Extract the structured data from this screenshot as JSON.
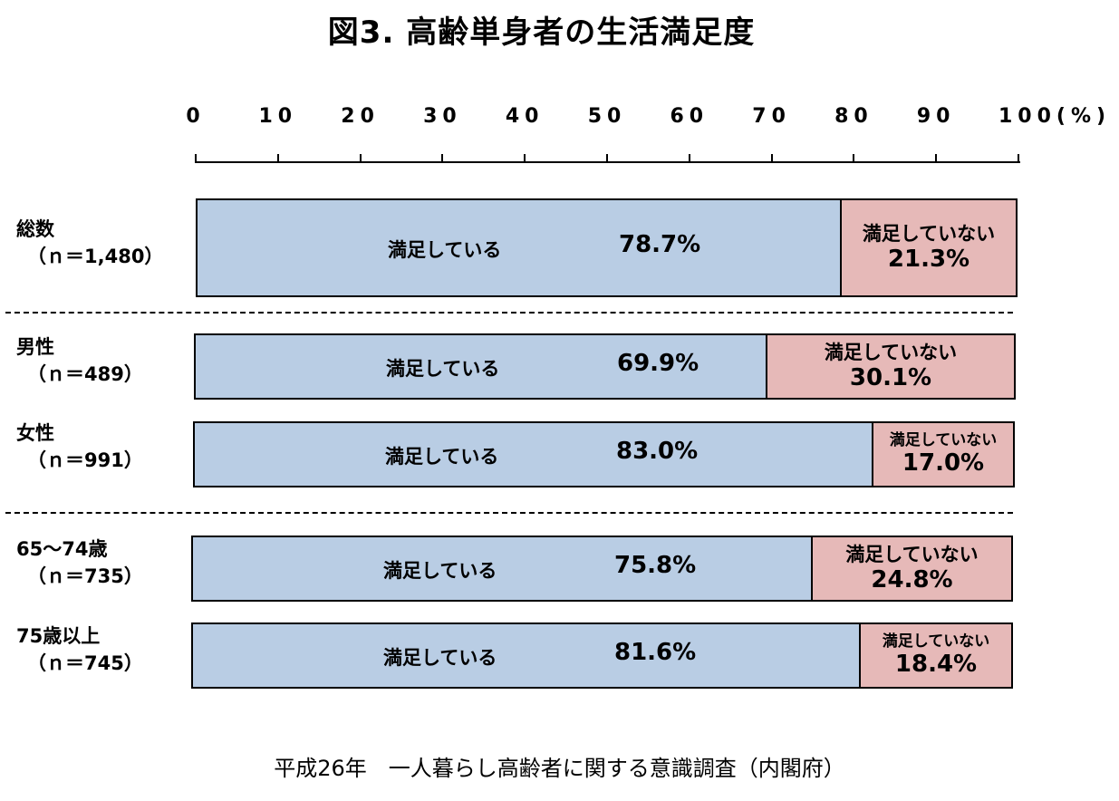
{
  "title": "図3. 高齢単身者の生活満足度",
  "source": "平成26年　一人暮らし高齢者に関する意識調査（内閣府）",
  "chart_data": {
    "type": "bar",
    "orientation": "horizontal",
    "stacked": true,
    "percent_stacked": true,
    "title": "図3. 高齢単身者の生活満足度",
    "xlim": [
      0,
      100
    ],
    "x_tick_labels": [
      "0",
      "10",
      "20",
      "30",
      "40",
      "50",
      "60",
      "70",
      "80",
      "90",
      "100(%)"
    ],
    "categories": [
      {
        "name": "総数",
        "n": "（ｎ＝1,480）"
      },
      {
        "name": "男性",
        "n": "（ｎ＝489）"
      },
      {
        "name": "女性",
        "n": "（ｎ＝991）"
      },
      {
        "name": "65～74歳",
        "n": "（ｎ＝735）"
      },
      {
        "name": "75歳以上",
        "n": "（ｎ＝745）"
      }
    ],
    "series": [
      {
        "name": "満足している",
        "color": "#b9cde4",
        "values": [
          78.7,
          69.9,
          83.0,
          75.8,
          81.6
        ],
        "labels": [
          "78.7%",
          "69.9%",
          "83.0%",
          "75.8%",
          "81.6%"
        ]
      },
      {
        "name": "満足していない",
        "color": "#e6b9b8",
        "values": [
          21.3,
          30.1,
          17.0,
          24.8,
          18.4
        ],
        "labels": [
          "21.3%",
          "30.1%",
          "17.0%",
          "24.8%",
          "18.4%"
        ]
      }
    ]
  }
}
